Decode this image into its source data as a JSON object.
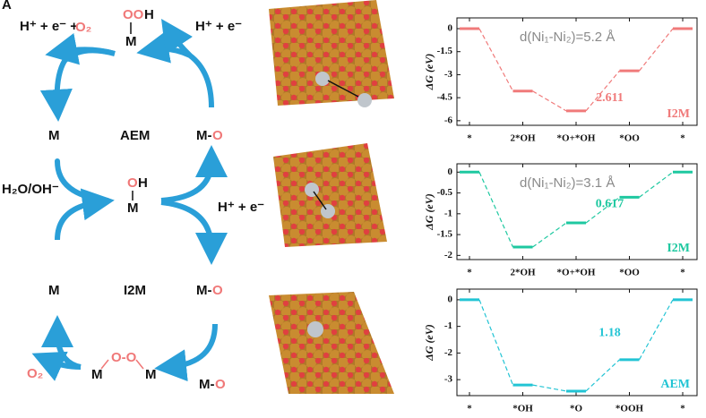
{
  "panel_label": "A",
  "mechanism": {
    "aem_top_left": "H⁺ + e⁻ +",
    "aem_top_left_o2": "O₂",
    "aem_top_oo": "OO",
    "aem_top_h": "H",
    "aem_top_m": "M",
    "aem_top_right": "H⁺ + e⁻",
    "aem_left": "M",
    "aem_name": "AEM",
    "aem_right_m": "M-",
    "aem_right_o": "O",
    "mid_left": "H₂O/OH⁻",
    "mid_o": "O",
    "mid_h": "H",
    "mid_m": "M",
    "mid_right": "H⁺ + e⁻",
    "i2m_left": "M",
    "i2m_name": "I2M",
    "i2m_right_m": "M-",
    "i2m_right_o": "O",
    "bottom_o2": "O₂",
    "bottom_oo": "O-O",
    "bottom_m1": "M",
    "bottom_m2": "M",
    "bottom_right_m": "M-",
    "bottom_right_o": "O"
  },
  "chart_data": [
    {
      "type": "energy",
      "y_label": "ΔG (eV)",
      "note": "d(Ni₁-Ni₂)=5.2 Å",
      "annotation": "2.611",
      "label": "I2M",
      "categories": [
        "*",
        "2*OH",
        "*O+*OH",
        "*OO",
        "*"
      ],
      "values": [
        0,
        -4.07,
        -5.36,
        -2.75,
        0
      ],
      "color": "#f07a7a",
      "ylim": [
        -6.3,
        0.7
      ],
      "yticks": [
        0,
        -1.5,
        -3,
        -4.5,
        -6
      ]
    },
    {
      "type": "energy",
      "y_label": "ΔG (eV)",
      "note": "d(Ni₁-Ni₂)=3.1 Å",
      "annotation": "0.617",
      "label": "I2M",
      "categories": [
        "*",
        "2*OH",
        "*O+*OH",
        "*OO",
        "*"
      ],
      "values": [
        0,
        -1.8,
        -1.22,
        -0.603,
        0
      ],
      "color": "#1ec8a0",
      "ylim": [
        -2.1,
        0.2
      ],
      "yticks": [
        0,
        -0.5,
        -1,
        -1.5,
        -2
      ]
    },
    {
      "type": "energy",
      "y_label": "ΔG (eV)",
      "annotation": "1.18",
      "label": "AEM",
      "categories": [
        "*",
        "*OH",
        "*O",
        "*OOH",
        "*"
      ],
      "values": [
        0,
        -3.2,
        -3.43,
        -2.25,
        0
      ],
      "color": "#22c4d4",
      "ylim": [
        -3.6,
        0.4
      ],
      "yticks": [
        0,
        -1,
        -2,
        -3
      ]
    }
  ]
}
